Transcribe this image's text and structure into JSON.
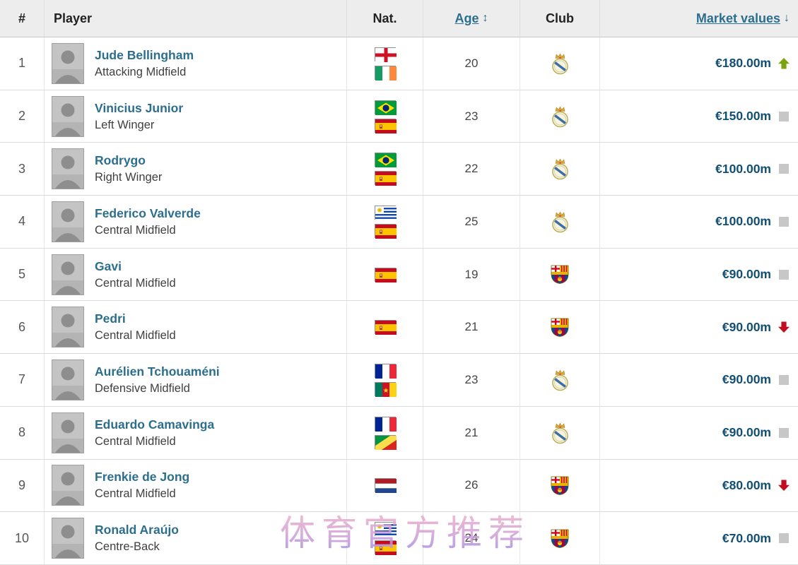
{
  "watermark": "体育官方推荐",
  "header": {
    "rank": "#",
    "player": "Player",
    "nat": "Nat.",
    "age": "Age",
    "age_sort_icon": "↕",
    "club": "Club",
    "market_values": "Market values",
    "market_values_sort_icon": "↓"
  },
  "colors": {
    "header_bg": "#ededed",
    "link": "#2c6e8e",
    "market_value_text": "#114f75",
    "trend_up": "#7ba30c",
    "trend_down": "#c30b20",
    "trend_same": "#c7c7c7"
  },
  "rows": [
    {
      "rank": "1",
      "name": "Jude Bellingham",
      "position": "Attacking Midfield",
      "nationalities": [
        "england",
        "ireland"
      ],
      "age": "20",
      "club": "real-madrid",
      "market_value": "€180.00m",
      "trend": "up"
    },
    {
      "rank": "2",
      "name": "Vinicius Junior",
      "position": "Left Winger",
      "nationalities": [
        "brazil",
        "spain"
      ],
      "age": "23",
      "club": "real-madrid",
      "market_value": "€150.00m",
      "trend": "same"
    },
    {
      "rank": "3",
      "name": "Rodrygo",
      "position": "Right Winger",
      "nationalities": [
        "brazil",
        "spain"
      ],
      "age": "22",
      "club": "real-madrid",
      "market_value": "€100.00m",
      "trend": "same"
    },
    {
      "rank": "4",
      "name": "Federico Valverde",
      "position": "Central Midfield",
      "nationalities": [
        "uruguay",
        "spain"
      ],
      "age": "25",
      "club": "real-madrid",
      "market_value": "€100.00m",
      "trend": "same"
    },
    {
      "rank": "5",
      "name": "Gavi",
      "position": "Central Midfield",
      "nationalities": [
        "spain"
      ],
      "age": "19",
      "club": "barcelona",
      "market_value": "€90.00m",
      "trend": "same"
    },
    {
      "rank": "6",
      "name": "Pedri",
      "position": "Central Midfield",
      "nationalities": [
        "spain"
      ],
      "age": "21",
      "club": "barcelona",
      "market_value": "€90.00m",
      "trend": "down"
    },
    {
      "rank": "7",
      "name": "Aurélien Tchouaméni",
      "position": "Defensive Midfield",
      "nationalities": [
        "france",
        "cameroon"
      ],
      "age": "23",
      "club": "real-madrid",
      "market_value": "€90.00m",
      "trend": "same"
    },
    {
      "rank": "8",
      "name": "Eduardo Camavinga",
      "position": "Central Midfield",
      "nationalities": [
        "france",
        "congo"
      ],
      "age": "21",
      "club": "real-madrid",
      "market_value": "€90.00m",
      "trend": "same"
    },
    {
      "rank": "9",
      "name": "Frenkie de Jong",
      "position": "Central Midfield",
      "nationalities": [
        "netherlands"
      ],
      "age": "26",
      "club": "barcelona",
      "market_value": "€80.00m",
      "trend": "down"
    },
    {
      "rank": "10",
      "name": "Ronald Araújo",
      "position": "Centre-Back",
      "nationalities": [
        "uruguay",
        "spain"
      ],
      "age": "24",
      "club": "barcelona",
      "market_value": "€70.00m",
      "trend": "same"
    }
  ]
}
